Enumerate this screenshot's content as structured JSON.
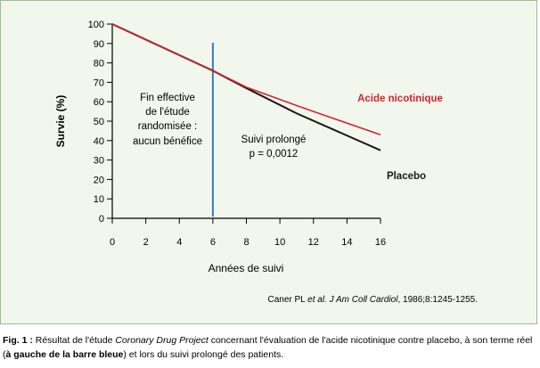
{
  "chart_data": {
    "type": "line",
    "title": "",
    "xlabel": "Années de suivi",
    "ylabel": "Survie (%)",
    "xlim": [
      0,
      16
    ],
    "ylim": [
      0,
      100
    ],
    "x_ticks": [
      0,
      2,
      4,
      6,
      8,
      10,
      12,
      14,
      16
    ],
    "y_ticks": [
      0,
      10,
      20,
      30,
      40,
      50,
      60,
      70,
      80,
      90,
      100
    ],
    "series": [
      {
        "name": "Acide nicotinique",
        "color": "#d9232e",
        "x": [
          0,
          6,
          8,
          11,
          16
        ],
        "y": [
          100,
          76,
          67.5,
          58,
          43
        ]
      },
      {
        "name": "Placebo",
        "color": "#1a1a1a",
        "x": [
          0,
          6,
          8,
          11,
          16
        ],
        "y": [
          100,
          76,
          67,
          54,
          35
        ]
      }
    ],
    "marker_line": {
      "x": 6,
      "color": "#3b7bbf"
    },
    "annotations": [
      {
        "id": "left",
        "lines": [
          "Fin effective",
          "de l'étude",
          "randomisée :",
          "aucun bénéfice"
        ]
      },
      {
        "id": "right",
        "lines": [
          "Suivi prolongé",
          "p = 0,0012"
        ]
      }
    ],
    "source": {
      "authors": "Caner PL ",
      "etal": "et al. J Am Coll Cardiol",
      "ref": ", 1986;8:1245-1255."
    }
  },
  "caption": {
    "fig_label": "Fig. 1 :",
    "t1": " Résultat de l'étude ",
    "t2_italic": "Coronary Drug Project",
    "t3": " concernant l'évaluation de l'acide nicotinique contre placebo, à son terme réel (",
    "t4_bold": "à gauche de la barre bleue",
    "t5": ") et lors du suivi prolongé des patients."
  }
}
